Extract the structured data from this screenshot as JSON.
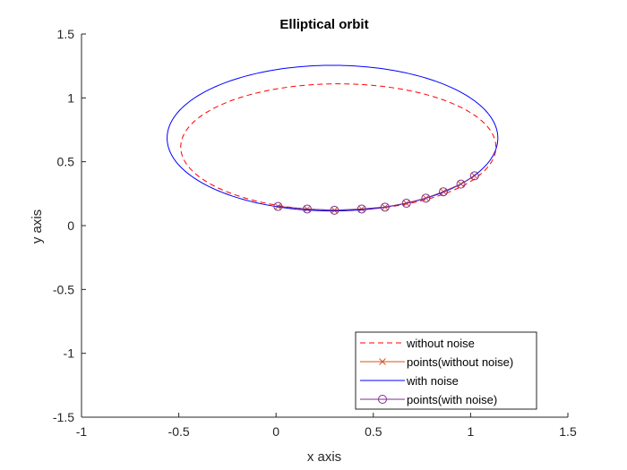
{
  "chart_data": {
    "type": "line",
    "title": "Elliptical orbit",
    "xlabel": "x axis",
    "ylabel": "y axis",
    "xlim": [
      -1,
      1.5
    ],
    "ylim": [
      -1.5,
      1.5
    ],
    "xticks": [
      -1,
      -0.5,
      0,
      0.5,
      1,
      1.5
    ],
    "yticks": [
      -1.5,
      -1,
      -0.5,
      0,
      0.5,
      1,
      1.5
    ],
    "xtick_labels": [
      "-1",
      "-0.5",
      "0",
      "0.5",
      "1",
      "1.5"
    ],
    "ytick_labels": [
      "-1.5",
      "-1",
      "-0.5",
      "0",
      "0.5",
      "1",
      "1.5"
    ],
    "grid": false,
    "legend_position": "bottom-right",
    "series": [
      {
        "name": "without noise",
        "style": "dashed-line",
        "color": "#ff0000",
        "ellipse": {
          "center": [
            0.32,
            0.615
          ],
          "semi_axis_x": 0.81,
          "semi_axis_y": 0.495
        }
      },
      {
        "name": "points(without noise)",
        "style": "line-with-x-markers",
        "color": "#d95319",
        "x": [
          0.01,
          0.16,
          0.3,
          0.44,
          0.56,
          0.67,
          0.77,
          0.86,
          0.95,
          1.02
        ],
        "y": [
          0.15,
          0.13,
          0.12,
          0.13,
          0.145,
          0.175,
          0.215,
          0.265,
          0.325,
          0.39
        ]
      },
      {
        "name": "with noise",
        "style": "solid-line",
        "color": "#0000ff",
        "ellipse": {
          "center": [
            0.29,
            0.685
          ],
          "semi_axis_x": 0.85,
          "semi_axis_y": 0.57
        }
      },
      {
        "name": "points(with noise)",
        "style": "line-with-circle-markers",
        "color": "#7e2f8e",
        "x": [
          0.01,
          0.16,
          0.3,
          0.44,
          0.56,
          0.67,
          0.77,
          0.86,
          0.95,
          1.02
        ],
        "y": [
          0.15,
          0.13,
          0.12,
          0.13,
          0.145,
          0.175,
          0.215,
          0.265,
          0.325,
          0.39
        ]
      }
    ]
  }
}
